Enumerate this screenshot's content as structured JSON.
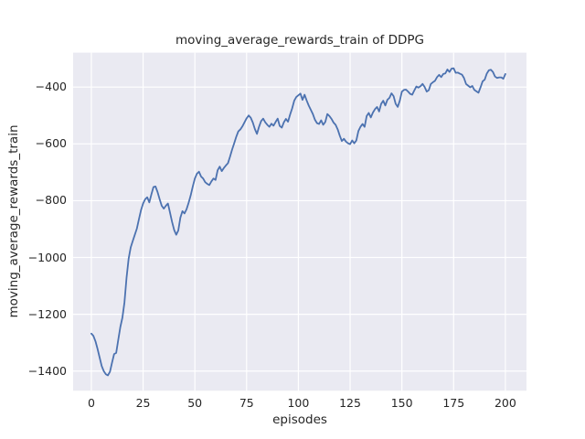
{
  "chart_data": {
    "type": "line",
    "title": "moving_average_rewards_train of DDPG",
    "xlabel": "episodes",
    "ylabel": "moving_average_rewards_train",
    "legend": "none",
    "grid": true,
    "plot_bg_color": "#eaeaf2",
    "grid_color": "#ffffff",
    "line_color": "#4c72b0",
    "text_color": "#262626",
    "xlim": [
      -8.8,
      210.2
    ],
    "ylim": [
      -1469,
      -279
    ],
    "x_ticks": [
      0,
      25,
      50,
      75,
      100,
      125,
      150,
      175,
      200
    ],
    "x_tick_labels": [
      "0",
      "25",
      "50",
      "75",
      "100",
      "125",
      "150",
      "175",
      "200"
    ],
    "y_ticks": [
      -400,
      -600,
      -800,
      -1000,
      -1200,
      -1400
    ],
    "y_tick_labels": [
      "−400",
      "−600",
      "−800",
      "−1000",
      "−1200",
      "−1400"
    ],
    "x_start": 0,
    "x_step": 1,
    "values": [
      -1268,
      -1276,
      -1295,
      -1322,
      -1352,
      -1382,
      -1400,
      -1411,
      -1415,
      -1402,
      -1370,
      -1340,
      -1336,
      -1290,
      -1245,
      -1212,
      -1158,
      -1072,
      -1005,
      -965,
      -942,
      -920,
      -898,
      -865,
      -833,
      -810,
      -795,
      -788,
      -806,
      -778,
      -752,
      -750,
      -770,
      -795,
      -818,
      -828,
      -818,
      -810,
      -842,
      -875,
      -903,
      -920,
      -905,
      -860,
      -837,
      -845,
      -830,
      -807,
      -781,
      -750,
      -722,
      -705,
      -698,
      -715,
      -722,
      -735,
      -741,
      -745,
      -732,
      -722,
      -727,
      -693,
      -680,
      -696,
      -685,
      -676,
      -668,
      -645,
      -620,
      -598,
      -575,
      -556,
      -549,
      -538,
      -524,
      -510,
      -500,
      -508,
      -525,
      -548,
      -565,
      -540,
      -520,
      -511,
      -524,
      -533,
      -540,
      -529,
      -536,
      -523,
      -511,
      -537,
      -543,
      -524,
      -512,
      -522,
      -497,
      -475,
      -448,
      -435,
      -429,
      -423,
      -445,
      -427,
      -447,
      -465,
      -480,
      -495,
      -515,
      -527,
      -530,
      -517,
      -533,
      -523,
      -495,
      -502,
      -512,
      -525,
      -533,
      -549,
      -571,
      -590,
      -582,
      -592,
      -598,
      -601,
      -588,
      -598,
      -588,
      -555,
      -540,
      -530,
      -540,
      -502,
      -491,
      -507,
      -490,
      -478,
      -470,
      -486,
      -459,
      -448,
      -465,
      -445,
      -438,
      -422,
      -432,
      -459,
      -470,
      -448,
      -416,
      -410,
      -409,
      -416,
      -424,
      -427,
      -412,
      -398,
      -402,
      -397,
      -389,
      -400,
      -416,
      -411,
      -389,
      -383,
      -378,
      -365,
      -357,
      -365,
      -354,
      -352,
      -338,
      -347,
      -335,
      -334,
      -350,
      -349,
      -353,
      -356,
      -368,
      -389,
      -395,
      -401,
      -396,
      -410,
      -415,
      -420,
      -401,
      -380,
      -374,
      -353,
      -341,
      -339,
      -347,
      -363,
      -368,
      -366,
      -366,
      -371,
      -354
    ]
  }
}
